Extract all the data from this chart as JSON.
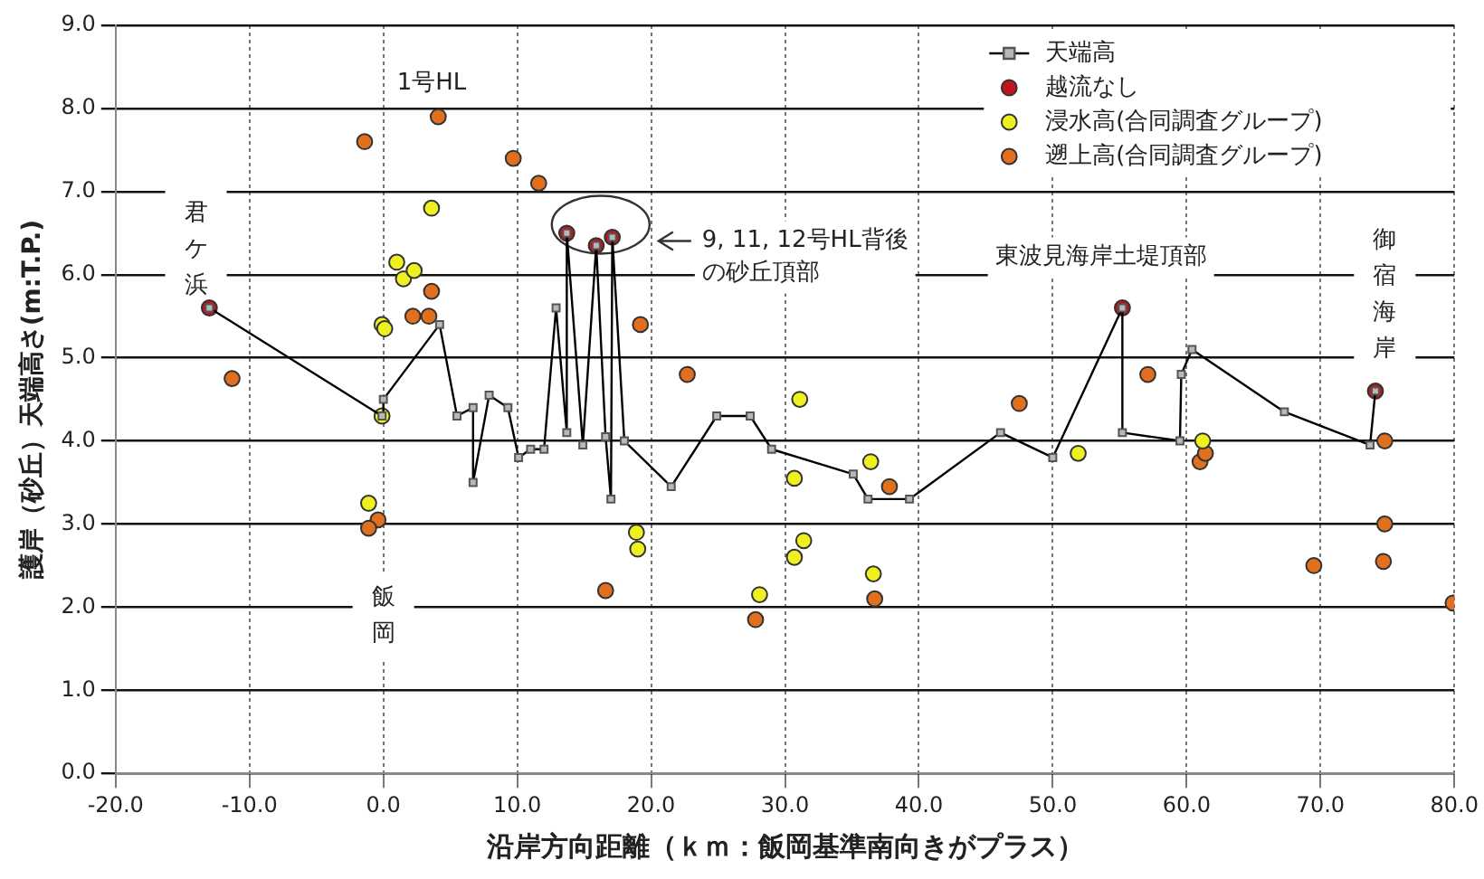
{
  "chart_data": {
    "type": "scatter",
    "xlabel": "沿岸方向距離（ｋｍ：飯岡基準南向きがプラス）",
    "ylabel": "護岸（砂丘）天端高さ(m:T.P.)",
    "xlim": [
      -20,
      80
    ],
    "xticks": [
      {
        "value": -20,
        "label": "-20.0"
      },
      {
        "value": -10,
        "label": "-10.0"
      },
      {
        "value": 0,
        "label": "0.0"
      },
      {
        "value": 10,
        "label": "10.0"
      },
      {
        "value": 20,
        "label": "20.0"
      },
      {
        "value": 30,
        "label": "30.0"
      },
      {
        "value": 40,
        "label": "40.0"
      },
      {
        "value": 50,
        "label": "50.0"
      },
      {
        "value": 60,
        "label": "60.0"
      },
      {
        "value": 70,
        "label": "70.0"
      },
      {
        "value": 80,
        "label": "80.0"
      }
    ],
    "ylim": [
      0,
      9
    ],
    "yticks": [
      {
        "value": 0,
        "label": "0.0"
      },
      {
        "value": 1,
        "label": "1.0"
      },
      {
        "value": 2,
        "label": "2.0"
      },
      {
        "value": 3,
        "label": "3.0"
      },
      {
        "value": 4,
        "label": "4.0"
      },
      {
        "value": 5,
        "label": "5.0"
      },
      {
        "value": 6,
        "label": "6.0"
      },
      {
        "value": 7,
        "label": "7.0"
      },
      {
        "value": 8,
        "label": "8.0"
      },
      {
        "value": 9,
        "label": "9.0"
      }
    ],
    "grid": true,
    "legend": "top right",
    "series": [
      {
        "name": "天端高",
        "type": "line",
        "marker": "square",
        "color": "#000000",
        "x": [
          -13,
          -0.1,
          0,
          4.2,
          5.5,
          6.7,
          6.7,
          7.9,
          9.3,
          10.1,
          11,
          12,
          12.9,
          13.7,
          13.7,
          14.9,
          15.9,
          16.6,
          17,
          17.1,
          18,
          21.5,
          24.9,
          27.4,
          29,
          35.1,
          36.2,
          39.3,
          46.1,
          50,
          55.2,
          55.2,
          59.5,
          59.6,
          60.4,
          67.3,
          73.7,
          74.1
        ],
        "values": [
          5.6,
          4.3,
          4.5,
          5.4,
          4.3,
          4.4,
          3.5,
          4.55,
          4.4,
          3.8,
          3.9,
          3.9,
          5.6,
          4.1,
          6.5,
          3.95,
          6.35,
          4.05,
          3.3,
          6.45,
          4.0,
          3.45,
          4.3,
          4.3,
          3.9,
          3.6,
          3.3,
          3.3,
          4.1,
          3.8,
          5.6,
          4.1,
          4.0,
          4.8,
          5.1,
          4.35,
          3.95,
          4.6
        ]
      },
      {
        "name": "越流なし",
        "type": "scatter",
        "marker": "circle",
        "color": "#c0141e",
        "x": [
          -13,
          13.7,
          15.9,
          17.1,
          55.2,
          74.1
        ],
        "values": [
          5.6,
          6.5,
          6.35,
          6.45,
          5.6,
          4.6
        ]
      },
      {
        "name": "浸水高(合同調査グループ)",
        "type": "scatter",
        "marker": "circle",
        "color": "#eef020",
        "x": [
          3.6,
          1.0,
          1.5,
          2.3,
          -0.1,
          0.1,
          -0.1,
          -1.1,
          18.9,
          19.0,
          31.1,
          30.7,
          31.4,
          30.7,
          36.4,
          36.6,
          28.1,
          51.9,
          61.2
        ],
        "values": [
          6.8,
          6.15,
          5.95,
          6.05,
          5.4,
          5.35,
          4.3,
          3.25,
          2.9,
          2.7,
          4.5,
          3.55,
          2.8,
          2.6,
          3.75,
          2.4,
          2.15,
          3.85,
          4.0
        ]
      },
      {
        "name": "遡上高(合同調査グループ)",
        "type": "scatter",
        "marker": "circle",
        "color": "#e0701e",
        "x": [
          -1.4,
          4.1,
          9.7,
          11.6,
          3.6,
          2.2,
          3.4,
          -11.3,
          -0.4,
          -1.1,
          19.2,
          22.7,
          37.8,
          16.6,
          27.8,
          36.7,
          47.5,
          57.1,
          61.0,
          61.4,
          74.8,
          74.8,
          74.7,
          69.5,
          79.9
        ],
        "values": [
          7.6,
          7.9,
          7.4,
          7.1,
          5.8,
          5.5,
          5.5,
          4.75,
          3.05,
          2.95,
          5.4,
          4.8,
          3.45,
          2.2,
          1.85,
          2.1,
          4.45,
          4.8,
          3.75,
          3.85,
          4.0,
          3.0,
          2.55,
          2.5,
          2.05
        ]
      }
    ],
    "annotations": [
      "1号HL",
      "君ケ浜",
      "飯岡",
      "9, 11, 12号HL背後の砂丘頂部",
      "東波見海岸土堤頂部",
      "御宿海岸"
    ]
  }
}
